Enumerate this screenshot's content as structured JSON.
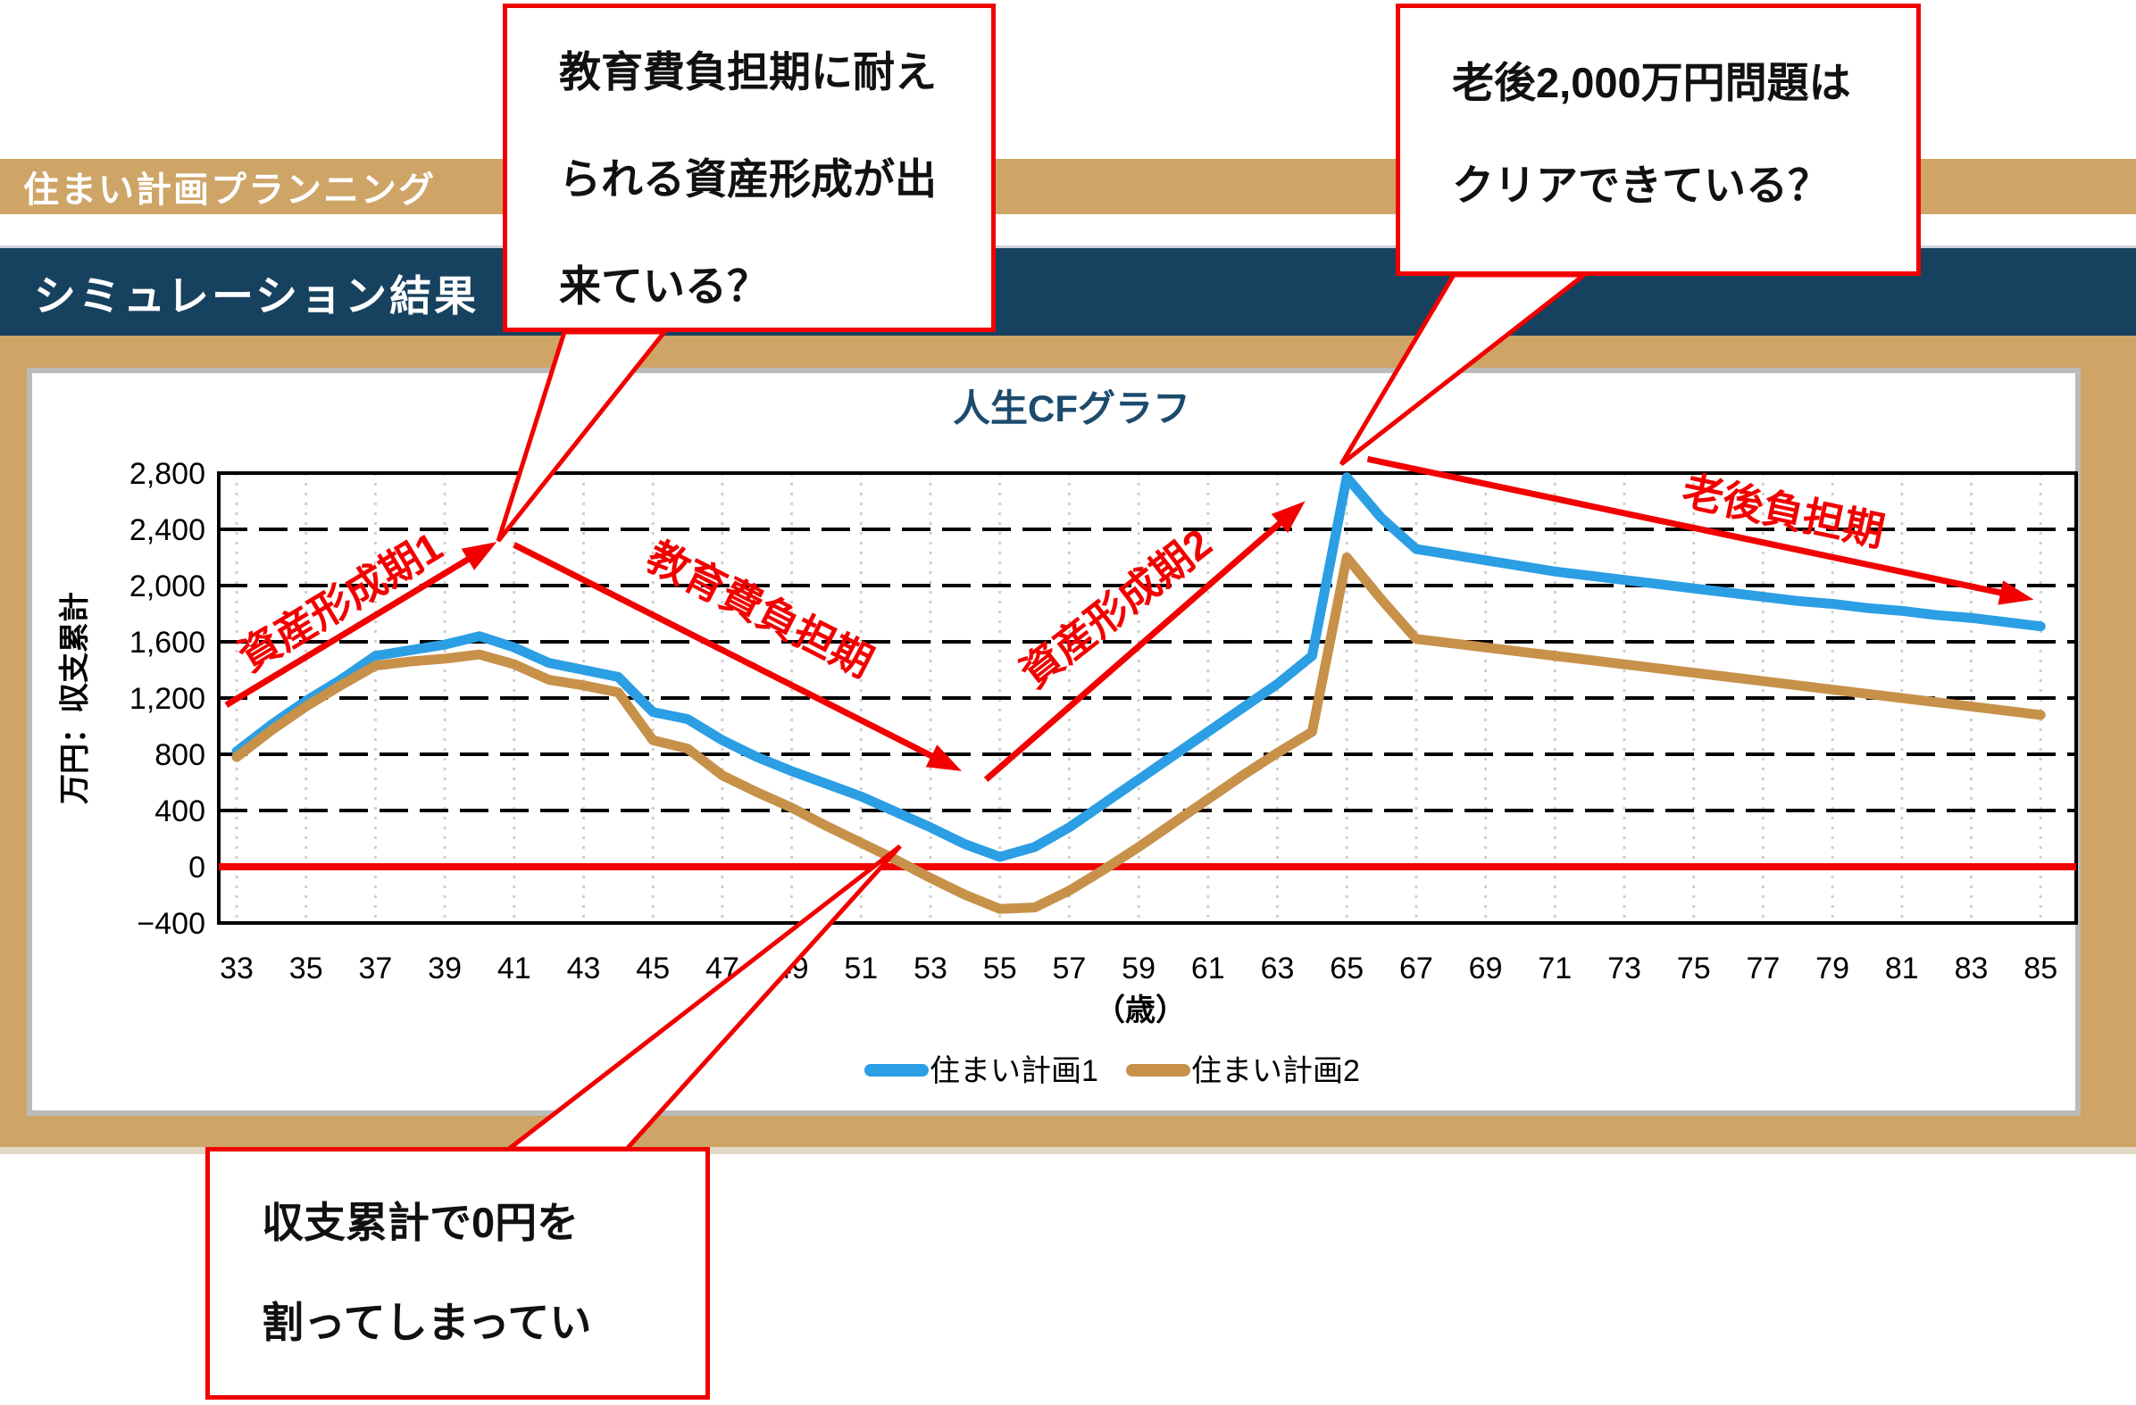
{
  "header": {
    "title": "住まい計画プランニング"
  },
  "section": {
    "title": "シミュレーション結果"
  },
  "callouts": [
    {
      "id": "education-burden-question",
      "lines": [
        "教育費負担期に耐え",
        "られる資産形成が出",
        "来ている？"
      ]
    },
    {
      "id": "retirement-2000man-question",
      "lines": [
        "老後2,000万円問題は",
        "クリアできている？"
      ]
    },
    {
      "id": "deficit-warning",
      "lines": [
        "収支累計で0円を",
        "割ってしまってい"
      ]
    }
  ],
  "chart_data": {
    "type": "line",
    "title": "人生CFグラフ",
    "ylabel": "万円：収支累計",
    "x_unit_label": "（歳）",
    "ylim": [
      -400,
      2800
    ],
    "ytick_step": 400,
    "ytick_labels": [
      "−400",
      "0",
      "400",
      "800",
      "1,200",
      "1,600",
      "2,000",
      "2,400",
      "2,800"
    ],
    "xticks": [
      33,
      35,
      37,
      39,
      41,
      43,
      45,
      47,
      49,
      51,
      53,
      55,
      57,
      59,
      61,
      63,
      65,
      67,
      69,
      71,
      73,
      75,
      77,
      79,
      81,
      83,
      85
    ],
    "grid": "horizontal-dashed-black, vertical-dotted-gray",
    "legend_position": "bottom-center",
    "x": [
      33,
      34,
      35,
      36,
      37,
      38,
      39,
      40,
      41,
      42,
      43,
      44,
      45,
      46,
      47,
      48,
      49,
      50,
      51,
      52,
      53,
      54,
      55,
      56,
      57,
      58,
      59,
      60,
      61,
      62,
      63,
      64,
      65,
      66,
      67,
      68,
      69,
      70,
      71,
      72,
      73,
      74,
      75,
      76,
      77,
      78,
      79,
      80,
      81,
      82,
      83,
      84,
      85
    ],
    "series": [
      {
        "name": "住まい計画1",
        "color": "#2B9EE4",
        "values": [
          820,
          1010,
          1180,
          1330,
          1500,
          1540,
          1580,
          1640,
          1560,
          1450,
          1400,
          1350,
          1100,
          1050,
          900,
          780,
          680,
          590,
          500,
          390,
          280,
          160,
          70,
          140,
          280,
          450,
          620,
          790,
          960,
          1130,
          1300,
          1500,
          2770,
          2480,
          2260,
          2220,
          2180,
          2140,
          2100,
          2070,
          2040,
          2010,
          1980,
          1950,
          1920,
          1890,
          1870,
          1840,
          1820,
          1790,
          1770,
          1740,
          1710
        ]
      },
      {
        "name": "住まい計画2",
        "color": "#C7914A",
        "values": [
          780,
          970,
          1140,
          1290,
          1430,
          1460,
          1480,
          1510,
          1440,
          1330,
          1290,
          1240,
          900,
          840,
          650,
          530,
          420,
          290,
          170,
          50,
          -80,
          -200,
          -300,
          -290,
          -170,
          -20,
          140,
          310,
          480,
          650,
          810,
          960,
          2200,
          1900,
          1620,
          1590,
          1560,
          1530,
          1500,
          1470,
          1440,
          1410,
          1380,
          1350,
          1320,
          1290,
          1260,
          1230,
          1200,
          1170,
          1140,
          1110,
          1080
        ]
      }
    ],
    "zero_line": {
      "value": 0,
      "color": "#F20000"
    },
    "annotations": [
      {
        "id": "phase-asset-1",
        "label": "資産形成期1",
        "from": {
          "age": 32.7,
          "value": 1150
        },
        "to": {
          "age": 40.5,
          "value": 2310
        },
        "label_at": {
          "age": 36.2,
          "value": 1800
        },
        "rotation": -31
      },
      {
        "id": "phase-education",
        "label": "教育費負担期",
        "from": {
          "age": 41.0,
          "value": 2290
        },
        "to": {
          "age": 53.9,
          "value": 680
        },
        "label_at": {
          "age": 47.9,
          "value": 1740
        },
        "rotation": 27
      },
      {
        "id": "phase-asset-2",
        "label": "資産形成期2",
        "from": {
          "age": 54.6,
          "value": 620
        },
        "to": {
          "age": 63.8,
          "value": 2600
        },
        "label_at": {
          "age": 58.6,
          "value": 1760
        },
        "rotation": -38
      },
      {
        "id": "phase-old-age",
        "label": "老後負担期",
        "from": {
          "age": 65.6,
          "value": 2900
        },
        "to": {
          "age": 84.8,
          "value": 1900
        },
        "label_at": {
          "age": 77.5,
          "value": 2430
        },
        "rotation": 12
      }
    ]
  }
}
